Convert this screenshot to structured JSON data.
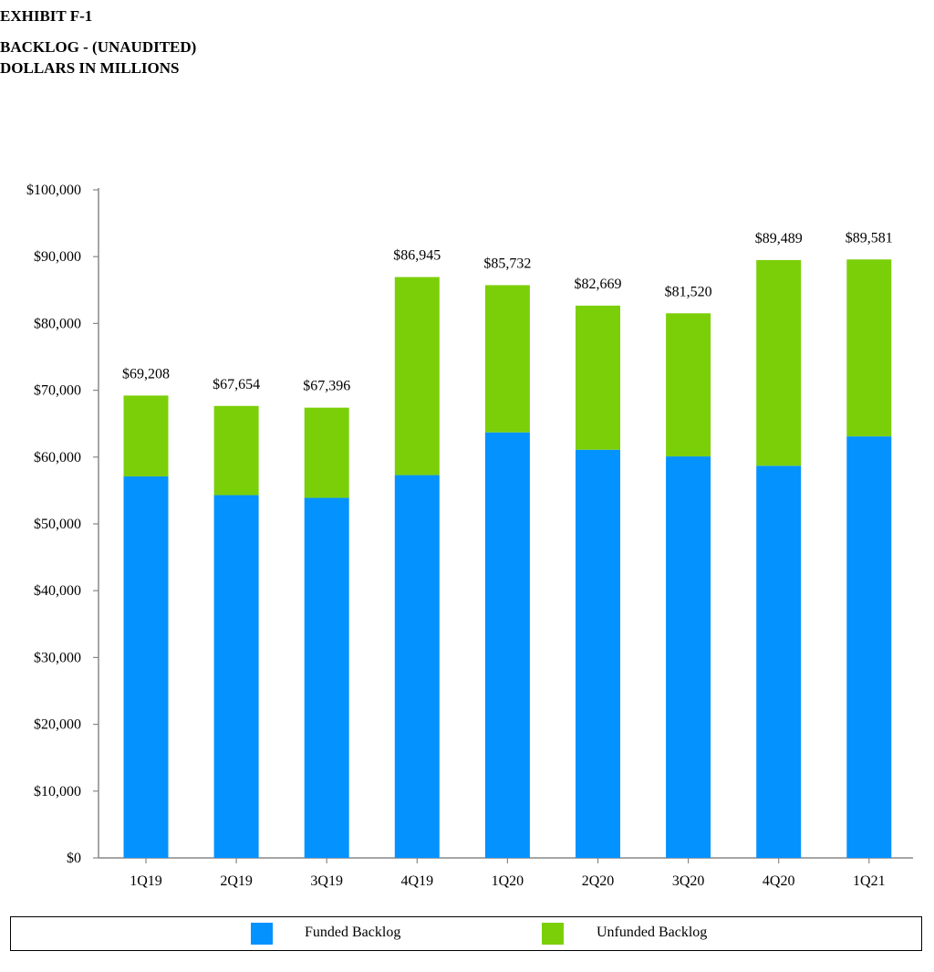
{
  "header": {
    "exhibit": "EXHIBIT F-1",
    "title": "BACKLOG - (UNAUDITED)",
    "subtitle": "DOLLARS IN MILLIONS"
  },
  "colors": {
    "funded": "#0492ff",
    "unfunded": "#7bcf08",
    "axis": "#888888"
  },
  "legend": {
    "funded": "Funded Backlog",
    "unfunded": "Unfunded Backlog"
  },
  "chart_data": {
    "type": "bar",
    "stacked": true,
    "title": "BACKLOG - (UNAUDITED)",
    "ylabel": "DOLLARS IN MILLIONS",
    "categories": [
      "1Q19",
      "2Q19",
      "3Q19",
      "4Q19",
      "1Q20",
      "2Q20",
      "3Q20",
      "4Q20",
      "1Q21"
    ],
    "series": [
      {
        "name": "Funded Backlog",
        "values": [
          57100,
          54300,
          53900,
          57300,
          63700,
          61100,
          60100,
          58700,
          63100
        ]
      },
      {
        "name": "Unfunded Backlog",
        "values": [
          12108,
          13354,
          13496,
          29645,
          22032,
          21569,
          21420,
          30789,
          26481
        ]
      }
    ],
    "totals": [
      69208,
      67654,
      67396,
      86945,
      85732,
      82669,
      81520,
      89489,
      89581
    ],
    "total_labels": [
      "$69,208",
      "$67,654",
      "$67,396",
      "$86,945",
      "$85,732",
      "$82,669",
      "$81,520",
      "$89,489",
      "$89,581"
    ],
    "yticks": [
      0,
      10000,
      20000,
      30000,
      40000,
      50000,
      60000,
      70000,
      80000,
      90000,
      100000
    ],
    "ytick_labels": [
      "$0",
      "$10,000",
      "$20,000",
      "$30,000",
      "$40,000",
      "$50,000",
      "$60,000",
      "$70,000",
      "$80,000",
      "$90,000",
      "$100,000"
    ],
    "ylim": [
      0,
      100000
    ],
    "legend_position": "bottom"
  }
}
